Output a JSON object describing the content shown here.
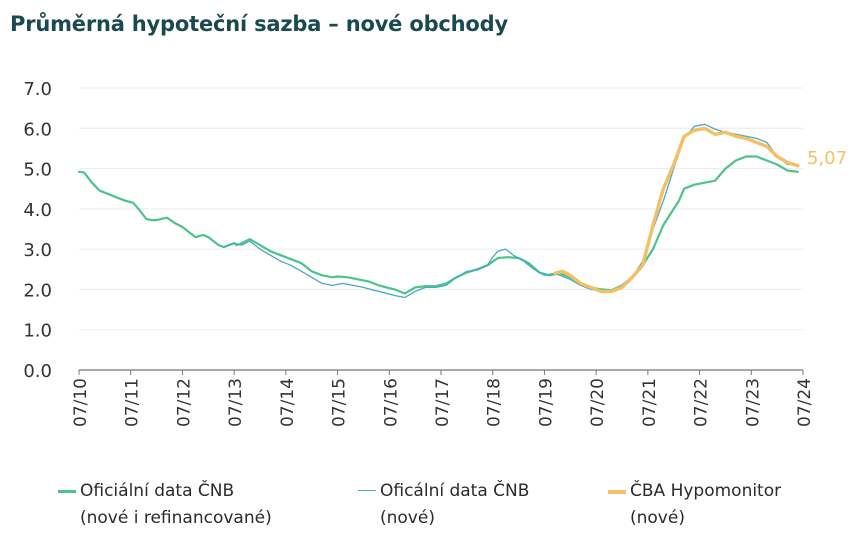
{
  "title": "Průměrná hypoteční sazba – nové obchody",
  "legend": [
    {
      "line1": "Oficiální data ČNB",
      "line2": "(nové i refinancované)",
      "color": "#4cc38a"
    },
    {
      "line1": "Oficální data ČNB",
      "line2": "(nové)",
      "color": "#48a9c5"
    },
    {
      "line1": "ČBA Hypomonitor",
      "line2": "(nové)",
      "color": "#f5c063"
    }
  ],
  "chart_data": {
    "type": "line",
    "ylim": [
      0,
      7
    ],
    "yticks": [
      "0.0",
      "1.0",
      "2.0",
      "3.0",
      "4.0",
      "5.0",
      "6.0",
      "7.0"
    ],
    "xlim": [
      2010.5,
      2024.5
    ],
    "xticks": [
      "07/10",
      "07/11",
      "07/12",
      "07/13",
      "07/14",
      "07/15",
      "07/16",
      "07/17",
      "07/18",
      "07/19",
      "07/20",
      "07/21",
      "07/22",
      "07/23",
      "07/24"
    ],
    "annotation": {
      "text": "5,07",
      "x": 2024.5,
      "y": 5.07,
      "color": "#f5c063"
    },
    "series": [
      {
        "name": "Oficiální data ČNB (nové i refinancované)",
        "color": "#4cc38a",
        "width": 2.2,
        "x": [
          2010.5,
          2010.6,
          2010.75,
          2010.9,
          2011.0,
          2011.2,
          2011.4,
          2011.55,
          2011.7,
          2011.8,
          2011.9,
          2012.0,
          2012.2,
          2012.35,
          2012.5,
          2012.6,
          2012.75,
          2012.9,
          2013.0,
          2013.2,
          2013.3,
          2013.5,
          2013.55,
          2013.65,
          2013.8,
          2014.0,
          2014.2,
          2014.4,
          2014.5,
          2014.6,
          2014.8,
          2015.0,
          2015.2,
          2015.4,
          2015.5,
          2015.7,
          2015.9,
          2016.1,
          2016.3,
          2016.45,
          2016.6,
          2016.8,
          2017.0,
          2017.2,
          2017.4,
          2017.6,
          2017.8,
          2018.0,
          2018.2,
          2018.4,
          2018.6,
          2018.8,
          2019.0,
          2019.2,
          2019.4,
          2019.6,
          2019.8,
          2020.0,
          2020.2,
          2020.4,
          2020.6,
          2020.8,
          2021.0,
          2021.2,
          2021.4,
          2021.6,
          2021.8,
          2022.0,
          2022.1,
          2022.2,
          2022.4,
          2022.6,
          2022.8,
          2023.0,
          2023.2,
          2023.4,
          2023.6,
          2023.8,
          2024.0,
          2024.2,
          2024.4
        ],
        "y": [
          4.92,
          4.9,
          4.65,
          4.45,
          4.4,
          4.3,
          4.2,
          4.15,
          3.92,
          3.75,
          3.72,
          3.72,
          3.78,
          3.65,
          3.55,
          3.45,
          3.3,
          3.35,
          3.3,
          3.1,
          3.05,
          3.15,
          3.1,
          3.15,
          3.25,
          3.1,
          2.95,
          2.85,
          2.8,
          2.75,
          2.65,
          2.45,
          2.35,
          2.3,
          2.32,
          2.3,
          2.25,
          2.2,
          2.1,
          2.05,
          2.0,
          1.9,
          2.05,
          2.08,
          2.08,
          2.15,
          2.3,
          2.42,
          2.5,
          2.6,
          2.78,
          2.8,
          2.78,
          2.65,
          2.42,
          2.35,
          2.4,
          2.3,
          2.15,
          2.05,
          2.0,
          1.98,
          2.1,
          2.3,
          2.6,
          3.0,
          3.6,
          4.0,
          4.2,
          4.5,
          4.6,
          4.65,
          4.7,
          5.0,
          5.2,
          5.3,
          5.3,
          5.2,
          5.1,
          4.95,
          4.92
        ]
      },
      {
        "name": "Oficální data ČNB (nové)",
        "color": "#48a9c5",
        "width": 1.3,
        "x": [
          2013.3,
          2013.5,
          2013.65,
          2013.8,
          2014.0,
          2014.2,
          2014.4,
          2014.6,
          2014.8,
          2015.0,
          2015.2,
          2015.4,
          2015.6,
          2015.8,
          2016.0,
          2016.2,
          2016.4,
          2016.6,
          2016.8,
          2017.0,
          2017.2,
          2017.4,
          2017.6,
          2017.8,
          2018.0,
          2018.2,
          2018.4,
          2018.5,
          2018.6,
          2018.75,
          2018.9,
          2019.1,
          2019.3,
          2019.5,
          2019.7,
          2020.0,
          2020.2,
          2020.4,
          2020.6,
          2020.8,
          2021.0,
          2021.2,
          2021.4,
          2021.6,
          2021.8,
          2022.0,
          2022.2,
          2022.4,
          2022.6,
          2022.8,
          2023.0,
          2023.2,
          2023.4,
          2023.6,
          2023.8,
          2024.0,
          2024.2,
          2024.4
        ],
        "y": [
          3.05,
          3.15,
          3.1,
          3.2,
          3.0,
          2.85,
          2.7,
          2.6,
          2.45,
          2.3,
          2.15,
          2.1,
          2.15,
          2.1,
          2.05,
          1.98,
          1.92,
          1.85,
          1.8,
          1.95,
          2.05,
          2.05,
          2.1,
          2.3,
          2.45,
          2.48,
          2.6,
          2.8,
          2.95,
          3.0,
          2.85,
          2.7,
          2.5,
          2.35,
          2.4,
          2.25,
          2.1,
          2.0,
          1.95,
          1.95,
          2.1,
          2.3,
          2.7,
          3.5,
          4.2,
          5.0,
          5.75,
          6.05,
          6.1,
          5.98,
          5.9,
          5.85,
          5.8,
          5.75,
          5.65,
          5.3,
          5.1,
          5.1
        ]
      },
      {
        "name": "ČBA Hypomonitor (nové)",
        "color": "#f5c063",
        "width": 3.4,
        "x": [
          2019.7,
          2019.85,
          2020.0,
          2020.2,
          2020.4,
          2020.6,
          2020.8,
          2021.0,
          2021.2,
          2021.4,
          2021.6,
          2021.8,
          2022.0,
          2022.2,
          2022.4,
          2022.6,
          2022.8,
          2023.0,
          2023.2,
          2023.4,
          2023.6,
          2023.8,
          2024.0,
          2024.2,
          2024.4
        ],
        "y": [
          2.4,
          2.45,
          2.35,
          2.15,
          2.05,
          1.95,
          1.95,
          2.05,
          2.3,
          2.6,
          3.6,
          4.5,
          5.1,
          5.8,
          5.95,
          6.0,
          5.85,
          5.9,
          5.8,
          5.75,
          5.65,
          5.55,
          5.3,
          5.15,
          5.07
        ]
      }
    ]
  }
}
